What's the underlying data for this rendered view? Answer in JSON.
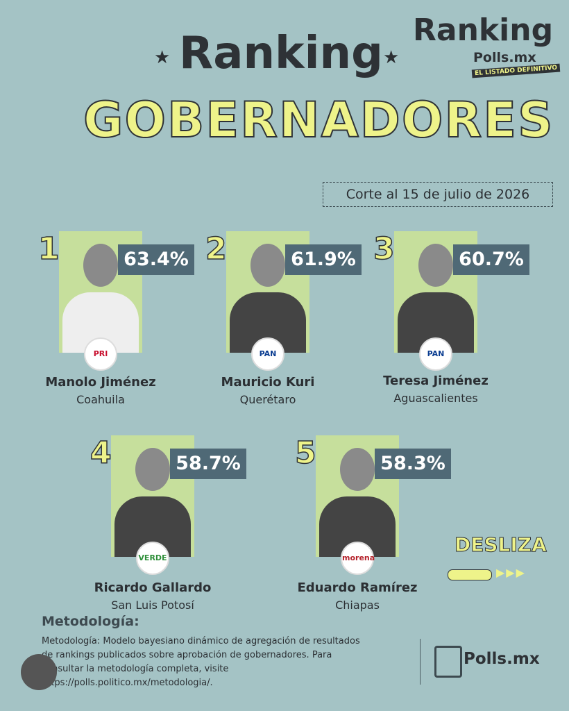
{
  "header": {
    "title_line1": "Ranking",
    "title_line2": "GOBERNADORES",
    "date": "Corte al 15 de julio de 2026"
  },
  "logo": {
    "name": "Ranking",
    "site": "Polls.mx",
    "tagline": "EL LISTADO DEFINITIVO"
  },
  "candidates": [
    {
      "rank": 1,
      "percent": "63.4%",
      "name": "Manolo Jiménez",
      "state": "Coahuila",
      "party": "PRI"
    },
    {
      "rank": 2,
      "percent": "61.9%",
      "name": "Mauricio Kuri",
      "state": "Querétaro",
      "party": "PAN"
    },
    {
      "rank": 3,
      "percent": "60.7%",
      "name": "Teresa Jiménez",
      "state": "Aguascalientes",
      "party": "PAN"
    },
    {
      "rank": 4,
      "percent": "58.7%",
      "name": "Ricardo Gallardo",
      "state": "San Luis Potosí",
      "party": "VERDE"
    },
    {
      "rank": 5,
      "percent": "58.3%",
      "name": "Eduardo Ramírez",
      "state": "Chiapas",
      "party": "morena"
    }
  ],
  "swipe": "DESLIZA",
  "methodology": {
    "title": "Metodología:",
    "text": "Metodología: Modelo bayesiano dinámico de agregación de resultados de rankings publicados sobre aprobación de gobernadores. Para consultar la metodología completa, visite https://polls.politico.mx/metodologia/."
  },
  "footer_logo": "Polls.mx"
}
